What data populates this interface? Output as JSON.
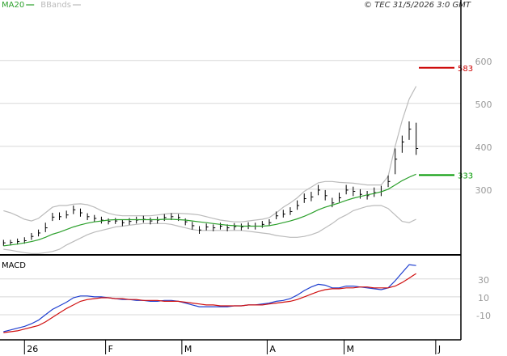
{
  "copyright": "© TEC 31/5/2026 3:0 GMT",
  "chart_data": [
    {
      "type": "ohlc",
      "xlim": [
        -0.5,
        65.4
      ],
      "xticks": [
        {
          "value": 3,
          "label": "26"
        },
        {
          "value": 14.6,
          "label": "F"
        },
        {
          "value": 25.5,
          "label": "M"
        },
        {
          "value": 37.7,
          "label": "A"
        },
        {
          "value": 48.7,
          "label": "M"
        },
        {
          "value": 61.8,
          "label": "J"
        }
      ],
      "ylim": [
        147,
        741
      ],
      "yticks": [
        300,
        400,
        500,
        600
      ],
      "grid": true,
      "color": "#000000",
      "x": [
        0,
        1,
        2,
        3,
        4,
        5,
        6,
        7,
        8,
        9,
        10,
        11,
        12,
        13,
        14,
        15,
        16,
        17,
        18,
        19,
        20,
        21,
        22,
        23,
        24,
        25,
        26,
        27,
        28,
        29,
        30,
        31,
        32,
        33,
        34,
        35,
        36,
        37,
        38,
        39,
        40,
        41,
        42,
        43,
        44,
        45,
        46,
        47,
        48,
        49,
        50,
        51,
        52,
        53,
        54,
        55,
        56,
        57,
        58,
        59
      ],
      "close": [
        175,
        176,
        178,
        180,
        190,
        198,
        210,
        235,
        236,
        240,
        252,
        245,
        236,
        232,
        228,
        225,
        226,
        222,
        225,
        228,
        230,
        226,
        228,
        234,
        236,
        234,
        224,
        215,
        205,
        212,
        210,
        214,
        210,
        213,
        212,
        215,
        214,
        218,
        222,
        238,
        242,
        248,
        262,
        278,
        282,
        298,
        285,
        268,
        280,
        298,
        295,
        288,
        285,
        292,
        295,
        318,
        370,
        410,
        440,
        395
      ],
      "high": [
        182,
        182,
        185,
        188,
        198,
        206,
        222,
        245,
        246,
        250,
        262,
        255,
        244,
        240,
        236,
        232,
        233,
        230,
        233,
        236,
        238,
        234,
        236,
        242,
        244,
        242,
        232,
        224,
        214,
        220,
        218,
        222,
        218,
        221,
        220,
        223,
        222,
        226,
        230,
        248,
        252,
        258,
        274,
        290,
        294,
        310,
        298,
        280,
        292,
        310,
        306,
        300,
        296,
        304,
        308,
        332,
        395,
        425,
        458,
        455
      ],
      "low": [
        168,
        169,
        171,
        173,
        182,
        190,
        200,
        226,
        228,
        232,
        242,
        236,
        228,
        224,
        220,
        218,
        219,
        214,
        217,
        220,
        222,
        218,
        220,
        226,
        228,
        226,
        216,
        206,
        196,
        204,
        202,
        206,
        202,
        205,
        204,
        207,
        206,
        210,
        214,
        230,
        234,
        240,
        252,
        268,
        272,
        286,
        274,
        258,
        270,
        288,
        284,
        278,
        276,
        282,
        284,
        305,
        335,
        385,
        415,
        380
      ],
      "series": [
        {
          "name": "MA20",
          "color": "#2ca02c",
          "values": [
            168,
            170,
            172,
            175,
            178,
            182,
            188,
            195,
            200,
            206,
            212,
            217,
            221,
            224,
            226,
            228,
            229,
            229,
            229,
            229,
            229,
            229,
            229,
            230,
            230,
            229,
            228,
            226,
            224,
            222,
            220,
            218,
            216,
            215,
            214,
            214,
            214,
            214,
            215,
            218,
            222,
            226,
            231,
            237,
            244,
            252,
            258,
            263,
            268,
            274,
            279,
            283,
            287,
            290,
            294,
            300,
            310,
            320,
            328,
            335
          ]
        },
        {
          "name": "BBands",
          "color": "#bbbbbb",
          "upper": [
            250,
            245,
            238,
            230,
            226,
            232,
            245,
            258,
            262,
            262,
            265,
            266,
            264,
            258,
            250,
            244,
            240,
            238,
            238,
            238,
            238,
            238,
            240,
            242,
            244,
            244,
            243,
            242,
            240,
            236,
            232,
            228,
            226,
            224,
            224,
            226,
            228,
            230,
            234,
            245,
            258,
            268,
            280,
            295,
            305,
            315,
            318,
            318,
            316,
            315,
            314,
            312,
            310,
            310,
            310,
            330,
            400,
            460,
            510,
            540
          ],
          "lower": [
            160,
            158,
            155,
            152,
            150,
            150,
            152,
            155,
            160,
            170,
            178,
            186,
            194,
            200,
            204,
            208,
            212,
            214,
            216,
            218,
            220,
            220,
            220,
            220,
            218,
            214,
            210,
            206,
            204,
            204,
            204,
            204,
            204,
            204,
            204,
            202,
            200,
            198,
            196,
            192,
            190,
            188,
            188,
            190,
            194,
            200,
            210,
            220,
            232,
            240,
            250,
            255,
            260,
            262,
            262,
            255,
            240,
            225,
            222,
            230
          ]
        }
      ],
      "levels": [
        {
          "value": 583,
          "color": "#cc0000"
        },
        {
          "value": 333,
          "color": "#009900"
        }
      ]
    },
    {
      "type": "line",
      "title": "MACD",
      "ylim": [
        -38,
        56
      ],
      "yticks": [
        30,
        10,
        -10
      ],
      "grid": true,
      "series": [
        {
          "color": "#1f3fd0",
          "values": [
            -29,
            -27,
            -25,
            -23,
            -20,
            -16,
            -10,
            -4,
            0,
            4,
            9,
            11,
            11,
            10,
            10,
            9,
            8,
            7,
            7,
            6,
            6,
            5,
            5,
            6,
            6,
            5,
            3,
            1,
            -1,
            -1,
            -1,
            -1,
            -1,
            0,
            0,
            1,
            1,
            2,
            3,
            5,
            6,
            8,
            12,
            17,
            21,
            24,
            23,
            20,
            20,
            22,
            22,
            21,
            20,
            19,
            18,
            20,
            28,
            37,
            46,
            45
          ]
        },
        {
          "color": "#d01010",
          "values": [
            -30,
            -29,
            -28,
            -26,
            -24,
            -22,
            -18,
            -13,
            -8,
            -3,
            1,
            5,
            7,
            8,
            9,
            9,
            8,
            8,
            7,
            7,
            6,
            6,
            6,
            5,
            5,
            5,
            4,
            3,
            2,
            1,
            1,
            0,
            0,
            0,
            0,
            1,
            1,
            1,
            2,
            3,
            4,
            5,
            7,
            10,
            13,
            16,
            18,
            19,
            19,
            20,
            20,
            21,
            21,
            20,
            20,
            20,
            22,
            26,
            31,
            36
          ]
        }
      ]
    }
  ]
}
